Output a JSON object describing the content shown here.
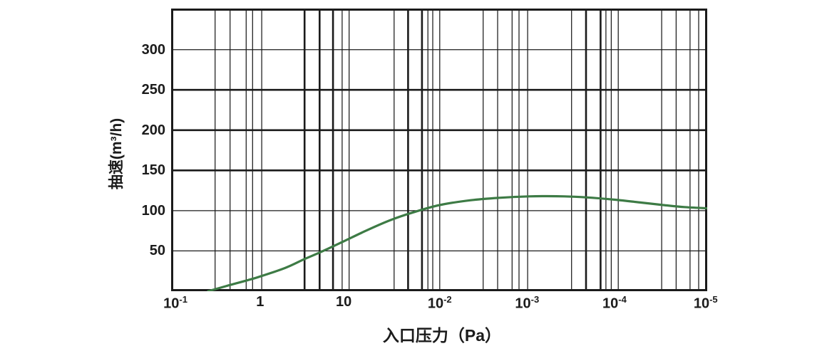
{
  "chart_data": {
    "type": "line",
    "title": "",
    "xlabel": "入口压力（Pa）",
    "ylabel": "抽速(m³/h)",
    "x_axis": {
      "ticks": [
        {
          "base": "10",
          "exp": "-1",
          "pos": 0.8
        },
        {
          "base": "1",
          "exp": "",
          "pos": 16.6
        },
        {
          "base": "10",
          "exp": "",
          "pos": 32.2
        },
        {
          "base": "10",
          "exp": "-2",
          "pos": 50.1
        },
        {
          "base": "10",
          "exp": "-3",
          "pos": 66.4
        },
        {
          "base": "10",
          "exp": "-4",
          "pos": 82.7
        },
        {
          "base": "10",
          "exp": "-5",
          "pos": 99.7
        }
      ],
      "gridlines": [
        [
          8.2,
          1
        ],
        [
          11.0,
          1
        ],
        [
          14.0,
          1
        ],
        [
          15.2,
          1
        ],
        [
          16.9,
          1
        ],
        [
          24.9,
          2
        ],
        [
          27.7,
          2
        ],
        [
          30.2,
          2
        ],
        [
          31.9,
          1
        ],
        [
          33.2,
          1
        ],
        [
          41.6,
          1
        ],
        [
          44.2,
          2
        ],
        [
          46.8,
          2
        ],
        [
          47.9,
          1
        ],
        [
          48.8,
          1
        ],
        [
          50.1,
          1
        ],
        [
          58.2,
          1
        ],
        [
          60.9,
          1
        ],
        [
          63.6,
          1
        ],
        [
          64.9,
          1
        ],
        [
          66.5,
          1
        ],
        [
          74.7,
          1
        ],
        [
          77.4,
          2
        ],
        [
          80.1,
          2
        ],
        [
          81.1,
          1
        ],
        [
          82.1,
          1
        ],
        [
          83.4,
          1
        ],
        [
          91.5,
          1
        ],
        [
          94.2,
          1
        ],
        [
          96.8,
          1
        ],
        [
          98.4,
          1
        ]
      ]
    },
    "y_axis": {
      "min": 0,
      "max": 351,
      "ticks": [
        [
          50,
          1
        ],
        [
          100,
          1
        ],
        [
          150,
          2
        ],
        [
          200,
          2
        ],
        [
          250,
          2
        ],
        [
          300,
          1
        ]
      ]
    },
    "series": [
      {
        "name": "抽速",
        "color": "#3d7b45",
        "points": [
          [
            6.9,
            0
          ],
          [
            10.6,
            7
          ],
          [
            16.0,
            17
          ],
          [
            21.3,
            29
          ],
          [
            24.9,
            40
          ],
          [
            27.7,
            48
          ],
          [
            31.9,
            61
          ],
          [
            36.3,
            75
          ],
          [
            40.8,
            88
          ],
          [
            45.2,
            98
          ],
          [
            50.1,
            107
          ],
          [
            55.9,
            113
          ],
          [
            61.2,
            116
          ],
          [
            66.8,
            117.8
          ],
          [
            70.0,
            118
          ],
          [
            73.3,
            117.8
          ],
          [
            77.4,
            116.5
          ],
          [
            83.0,
            113.5
          ],
          [
            87.8,
            110
          ],
          [
            91.8,
            107
          ],
          [
            95.7,
            104.5
          ],
          [
            100,
            103
          ]
        ]
      }
    ]
  },
  "colors": {
    "grid": "#1b1b1b",
    "text": "#1b1b1b",
    "curve": "#3d7b45",
    "background": "#ffffff"
  }
}
